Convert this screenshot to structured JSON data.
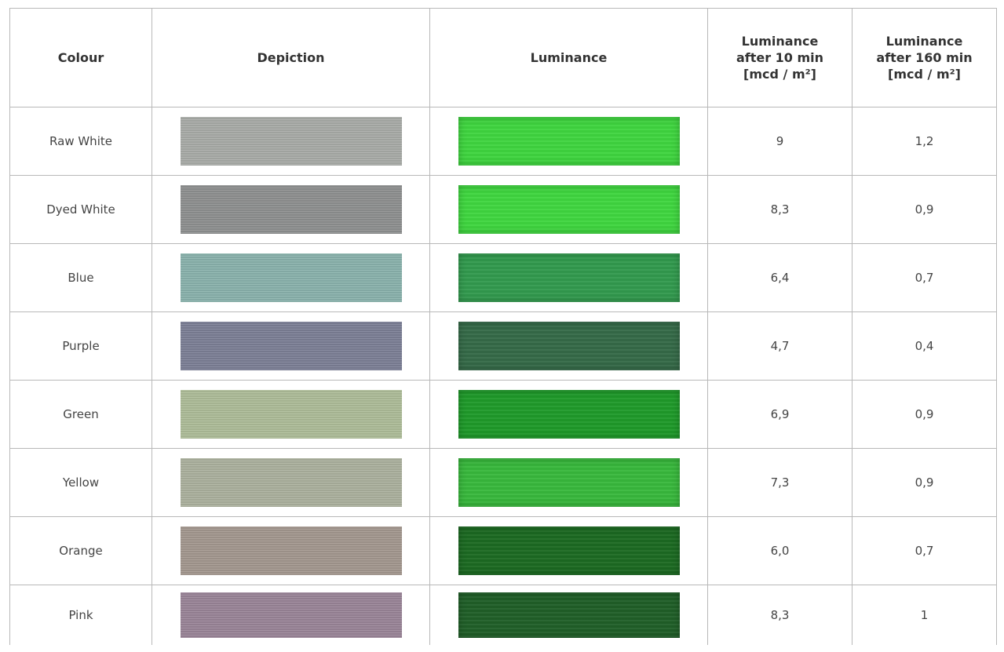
{
  "headers": {
    "colour": "Colour",
    "depiction": "Depiction",
    "luminance": "Luminance",
    "lum10": "Luminance\nafter 10 min\n[mcd / m²]",
    "lum160": "Luminance\nafter 160 min\n[mcd / m²]"
  },
  "rows": [
    {
      "colour": "Raw White",
      "lum10": "9",
      "lum160": "1,2",
      "depiction_color": "#a9aca8",
      "luminance_color": "#3fd53f"
    },
    {
      "colour": "Dyed White",
      "lum10": "8,3",
      "lum160": "0,9",
      "depiction_color": "#8e9090",
      "luminance_color": "#3fd63f"
    },
    {
      "colour": "Blue",
      "lum10": "6,4",
      "lum160": "0,7",
      "depiction_color": "#8ab3ad",
      "luminance_color": "#329a4e"
    },
    {
      "colour": "Purple",
      "lum10": "4,7",
      "lum160": "0,4",
      "depiction_color": "#7c7f96",
      "luminance_color": "#356a48"
    },
    {
      "colour": "Green",
      "lum10": "6,9",
      "lum160": "0,9",
      "depiction_color": "#aebd99",
      "luminance_color": "#1f9a2a"
    },
    {
      "colour": "Yellow",
      "lum10": "7,3",
      "lum160": "0,9",
      "depiction_color": "#acb19e",
      "luminance_color": "#38b83c"
    },
    {
      "colour": "Orange",
      "lum10": "6,0",
      "lum160": "0,7",
      "depiction_color": "#a4988f",
      "luminance_color": "#1c6a22"
    },
    {
      "colour": "Pink",
      "lum10": "8,3",
      "lum160": "1",
      "depiction_color": "#9a8598",
      "luminance_color": "#205f28"
    }
  ]
}
